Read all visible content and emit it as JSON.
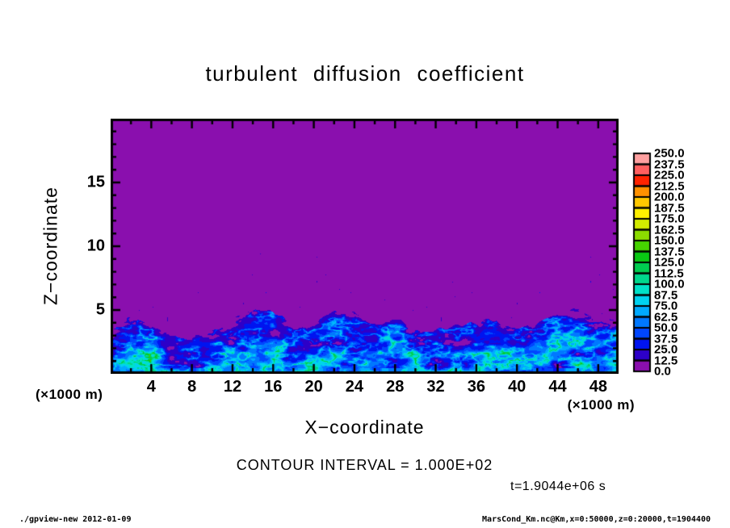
{
  "chart_data": {
    "type": "heatmap",
    "title": "turbulent diffusion coefficient",
    "xlabel": "X−coordinate",
    "ylabel": "Z−coordinate",
    "x_unit_label": "(×1000 m)",
    "y_unit_label": "(×1000 m)",
    "xlim": [
      0,
      50
    ],
    "ylim": [
      0,
      20
    ],
    "x_ticks_major": [
      4,
      8,
      12,
      16,
      20,
      24,
      28,
      32,
      36,
      40,
      44,
      48
    ],
    "x_tick_labels": [
      "4",
      "8",
      "12",
      "16",
      "20",
      "24",
      "28",
      "32",
      "36",
      "40",
      "44",
      "48"
    ],
    "x_minor_step": 2,
    "y_ticks_major": [
      5,
      10,
      15
    ],
    "y_tick_labels": [
      "5",
      "10",
      "15"
    ],
    "y_minor_step": 1,
    "contour_interval_label": "CONTOUR INTERVAL = 1.000E+02",
    "time_label": "t=1.9044e+06 s",
    "colorbar": {
      "levels": [
        0.0,
        12.5,
        25.0,
        37.5,
        50.0,
        62.5,
        75.0,
        87.5,
        100.0,
        112.5,
        125.0,
        137.5,
        150.0,
        162.5,
        175.0,
        187.5,
        200.0,
        212.5,
        225.0,
        237.5,
        250.0
      ],
      "tick_labels_top_to_bottom": [
        "250.0",
        "237.5",
        "225.0",
        "212.5",
        "200.0",
        "187.5",
        "175.0",
        "162.5",
        "150.0",
        "137.5",
        "125.0",
        "112.5",
        "100.0",
        "87.5",
        "75.0",
        "62.5",
        "50.0",
        "37.5",
        "25.0",
        "12.5",
        "0.0"
      ],
      "colors_bottom_to_top": [
        "#8a0fae",
        "#2d00c8",
        "#0014f0",
        "#0046ff",
        "#0078ff",
        "#00aaff",
        "#00d2f0",
        "#00e1c8",
        "#00d78c",
        "#00cd50",
        "#0ac814",
        "#46d200",
        "#8cdc00",
        "#d2eb00",
        "#fff000",
        "#ffc800",
        "#ff9100",
        "#ff2300",
        "#ff5f5f",
        "#ffa0a0"
      ]
    },
    "field": {
      "background_value": 0.0,
      "turbulent_layer_value_range": [
        12.5,
        150.0
      ],
      "x_sample_km": [
        0,
        2,
        4,
        6,
        8,
        10,
        12,
        14,
        16,
        18,
        20,
        22,
        24,
        26,
        28,
        30,
        32,
        34,
        36,
        38,
        40,
        42,
        44,
        46,
        48,
        50
      ],
      "layer_top_km": [
        3.6,
        4.6,
        4.0,
        2.9,
        2.8,
        3.4,
        4.3,
        5.3,
        5.0,
        3.6,
        3.9,
        5.1,
        4.6,
        4.0,
        4.4,
        3.3,
        3.4,
        3.7,
        4.0,
        4.2,
        3.4,
        3.9,
        4.6,
        5.0,
        4.5,
        4.2
      ],
      "speckle_zone_top_km": 9.5
    }
  },
  "footer": {
    "left": "./gpview-new  2012-01-09",
    "right": "MarsCond_Km.nc@Km,x=0:50000,z=0:20000,t=1904400"
  }
}
